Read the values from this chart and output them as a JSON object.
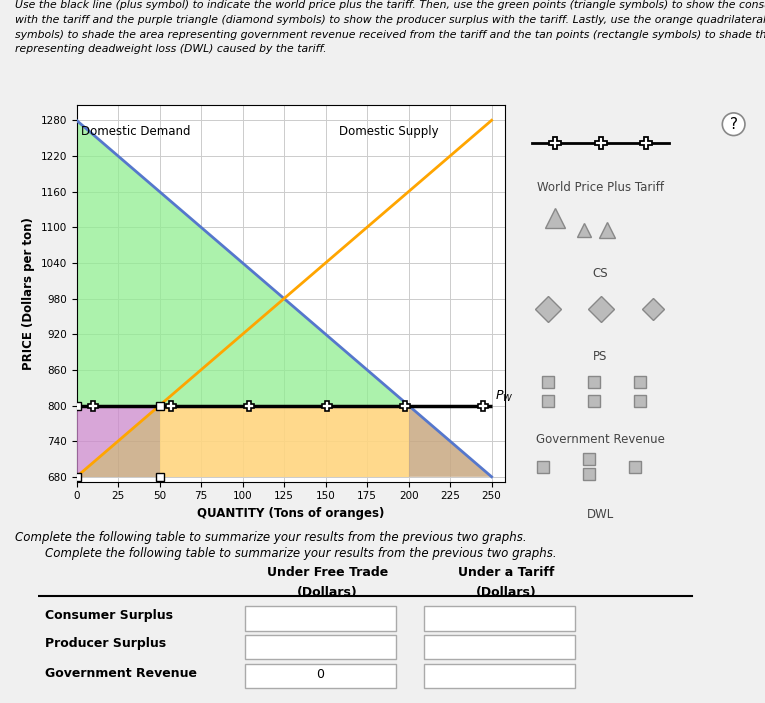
{
  "title_text": "Use the black line (plus symbol) to indicate the world price plus the tariff. Then, use the green points (triangle symbols) to show the consumer surplus\nwith the tariff and the purple triangle (diamond symbols) to show the producer surplus with the tariff. Lastly, use the orange quadrilateral (square\nsymbols) to shade the area representing government revenue received from the tariff and the tan points (rectangle symbols) to shade the areas\nrepresenting deadweight loss (DWL) caused by the tariff.",
  "demand_slope": -2.4,
  "demand_intercept": 1280,
  "supply_slope": 2.4,
  "supply_intercept": 680,
  "pw_tariff": 800,
  "qty_supply_at_pw": 50,
  "qty_demand_at_pw": 200,
  "qty_max": 250,
  "price_min": 680,
  "price_max": 1280,
  "xlabel": "QUANTITY (Tons of oranges)",
  "ylabel": "PRICE (Dollars per ton)",
  "demand_label": "Domestic Demand",
  "supply_label": "Domestic Supply",
  "pw_label": "$P_W$",
  "xticks": [
    0,
    25,
    50,
    75,
    100,
    125,
    150,
    175,
    200,
    225,
    250
  ],
  "yticks": [
    680,
    740,
    800,
    860,
    920,
    980,
    1040,
    1100,
    1160,
    1220,
    1280
  ],
  "cs_color": "#90EE90",
  "ps_color": "#CC88CC",
  "gov_color": "#FFD580",
  "dwl_color": "#C8A882",
  "demand_color": "#5577CC",
  "supply_color": "#FFA500",
  "pw_color": "#000000",
  "fig_bg": "#f0f0f0",
  "ax_bg": "#ffffff",
  "grid_color": "#cccccc",
  "intersection_qty": 125,
  "intersection_price": 980,
  "table_intro": "Complete the following table to summarize your results from the previous two graphs.",
  "table_col1": "Under Free Trade\n(Dollars)",
  "table_col2": "Under a Tariff\n(Dollars)",
  "table_rows": [
    "Consumer Surplus",
    "Producer Surplus",
    "Government Revenue"
  ],
  "gov_free_trade_val": "0"
}
